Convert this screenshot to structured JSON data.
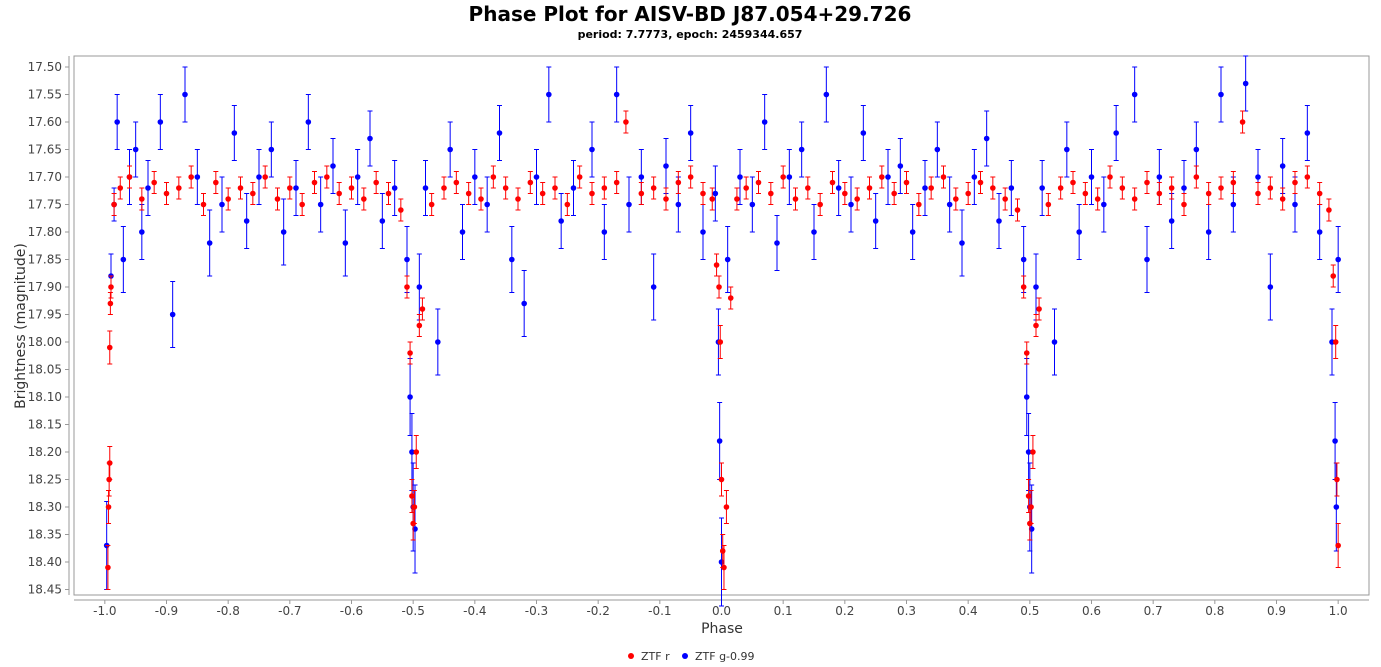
{
  "chart_data": {
    "type": "scatter",
    "title": "Phase Plot for AISV-BD J87.054+29.726",
    "subtitle": "period: 7.7773, epoch: 2459344.657",
    "xlabel": "Phase",
    "ylabel": "Brightness (magnitude)",
    "xlim": [
      -1.05,
      1.05
    ],
    "ylim": [
      18.46,
      17.48
    ],
    "y_inverted": true,
    "x_ticks": [
      "-1.0",
      "-0.9",
      "-0.8",
      "-0.7",
      "-0.6",
      "-0.5",
      "-0.4",
      "-0.3",
      "-0.2",
      "-0.1",
      "0.0",
      "0.1",
      "0.2",
      "0.3",
      "0.4",
      "0.5",
      "0.6",
      "0.7",
      "0.8",
      "0.9",
      "1.0"
    ],
    "y_ticks": [
      "17.50",
      "17.55",
      "17.60",
      "17.65",
      "17.70",
      "17.75",
      "17.80",
      "17.85",
      "17.90",
      "17.95",
      "18.00",
      "18.05",
      "18.10",
      "18.15",
      "18.20",
      "18.25",
      "18.30",
      "18.35",
      "18.40",
      "18.45"
    ],
    "grid": false,
    "legend_position": "bottom-center",
    "series": [
      {
        "name": "ZTF r",
        "color": "#ff0000",
        "x": [
          -0.995,
          -0.994,
          -0.993,
          -0.992,
          -0.992,
          -0.991,
          -0.99,
          -0.985,
          -0.975,
          -0.96,
          -0.94,
          -0.92,
          -0.9,
          -0.88,
          -0.86,
          -0.84,
          -0.82,
          -0.8,
          -0.78,
          -0.76,
          -0.74,
          -0.72,
          -0.7,
          -0.68,
          -0.66,
          -0.64,
          -0.62,
          -0.6,
          -0.58,
          -0.56,
          -0.54,
          -0.52,
          -0.51,
          -0.505,
          -0.502,
          -0.5,
          -0.498,
          -0.495,
          -0.49,
          -0.485,
          -0.47,
          -0.45,
          -0.43,
          -0.41,
          -0.39,
          -0.37,
          -0.35,
          -0.33,
          -0.31,
          -0.29,
          -0.27,
          -0.25,
          -0.23,
          -0.21,
          -0.19,
          -0.17,
          -0.155,
          -0.13,
          -0.11,
          -0.09,
          -0.07,
          -0.05,
          -0.03,
          -0.015,
          -0.008,
          -0.004,
          -0.002,
          0.0,
          0.002,
          0.004,
          0.008,
          0.015,
          0.025,
          0.04,
          0.06,
          0.08,
          0.1,
          0.12,
          0.14,
          0.16,
          0.18,
          0.2,
          0.22,
          0.24,
          0.26,
          0.28,
          0.3,
          0.32,
          0.34,
          0.36,
          0.38,
          0.4,
          0.42,
          0.44,
          0.46,
          0.48,
          0.49,
          0.495,
          0.498,
          0.5,
          0.502,
          0.505,
          0.51,
          0.515,
          0.53,
          0.55,
          0.57,
          0.59,
          0.61,
          0.63,
          0.65,
          0.67,
          0.69,
          0.71,
          0.73,
          0.75,
          0.77,
          0.79,
          0.81,
          0.83,
          0.845,
          0.87,
          0.89,
          0.91,
          0.93,
          0.95,
          0.97,
          0.985,
          0.992,
          0.996,
          0.998,
          1.0
        ],
        "y": [
          18.41,
          18.3,
          18.25,
          18.22,
          18.01,
          17.93,
          17.9,
          17.75,
          17.72,
          17.7,
          17.74,
          17.71,
          17.73,
          17.72,
          17.7,
          17.75,
          17.71,
          17.74,
          17.72,
          17.73,
          17.7,
          17.74,
          17.72,
          17.75,
          17.71,
          17.7,
          17.73,
          17.72,
          17.74,
          17.71,
          17.73,
          17.76,
          17.9,
          18.02,
          18.28,
          18.33,
          18.3,
          18.2,
          17.97,
          17.94,
          17.75,
          17.72,
          17.71,
          17.73,
          17.74,
          17.7,
          17.72,
          17.74,
          17.71,
          17.73,
          17.72,
          17.75,
          17.7,
          17.73,
          17.72,
          17.71,
          17.6,
          17.73,
          17.72,
          17.74,
          17.71,
          17.7,
          17.73,
          17.74,
          17.86,
          17.9,
          18.0,
          18.25,
          18.38,
          18.41,
          18.3,
          17.92,
          17.74,
          17.72,
          17.71,
          17.73,
          17.7,
          17.74,
          17.72,
          17.75,
          17.71,
          17.73,
          17.74,
          17.72,
          17.7,
          17.73,
          17.71,
          17.75,
          17.72,
          17.7,
          17.74,
          17.73,
          17.71,
          17.72,
          17.74,
          17.76,
          17.9,
          18.02,
          18.28,
          18.33,
          18.3,
          18.2,
          17.97,
          17.94,
          17.75,
          17.72,
          17.71,
          17.73,
          17.74,
          17.7,
          17.72,
          17.74,
          17.71,
          17.73,
          17.72,
          17.75,
          17.7,
          17.73,
          17.72,
          17.71,
          17.6,
          17.73,
          17.72,
          17.74,
          17.71,
          17.7,
          17.73,
          17.76,
          17.88,
          18.0,
          18.25,
          18.37
        ],
        "err": [
          0.04,
          0.03,
          0.03,
          0.03,
          0.03,
          0.02,
          0.02,
          0.02,
          0.02,
          0.02,
          0.02,
          0.02,
          0.02,
          0.02,
          0.02,
          0.02,
          0.02,
          0.02,
          0.02,
          0.02,
          0.02,
          0.02,
          0.02,
          0.02,
          0.02,
          0.02,
          0.02,
          0.02,
          0.02,
          0.02,
          0.02,
          0.02,
          0.02,
          0.02,
          0.03,
          0.03,
          0.03,
          0.03,
          0.02,
          0.02,
          0.02,
          0.02,
          0.02,
          0.02,
          0.02,
          0.02,
          0.02,
          0.02,
          0.02,
          0.02,
          0.02,
          0.02,
          0.02,
          0.02,
          0.02,
          0.02,
          0.02,
          0.02,
          0.02,
          0.02,
          0.02,
          0.02,
          0.02,
          0.02,
          0.02,
          0.02,
          0.03,
          0.03,
          0.03,
          0.04,
          0.03,
          0.02,
          0.02,
          0.02,
          0.02,
          0.02,
          0.02,
          0.02,
          0.02,
          0.02,
          0.02,
          0.02,
          0.02,
          0.02,
          0.02,
          0.02,
          0.02,
          0.02,
          0.02,
          0.02,
          0.02,
          0.02,
          0.02,
          0.02,
          0.02,
          0.02,
          0.02,
          0.02,
          0.03,
          0.03,
          0.03,
          0.03,
          0.02,
          0.02,
          0.02,
          0.02,
          0.02,
          0.02,
          0.02,
          0.02,
          0.02,
          0.02,
          0.02,
          0.02,
          0.02,
          0.02,
          0.02,
          0.02,
          0.02,
          0.02,
          0.02,
          0.02,
          0.02,
          0.02,
          0.02,
          0.02,
          0.02,
          0.02,
          0.02,
          0.03,
          0.03,
          0.04
        ]
      },
      {
        "name": "ZTF g-0.99",
        "color": "#0000ff",
        "x": [
          -0.997,
          -0.99,
          -0.985,
          -0.98,
          -0.97,
          -0.96,
          -0.95,
          -0.94,
          -0.93,
          -0.91,
          -0.89,
          -0.87,
          -0.85,
          -0.83,
          -0.81,
          -0.79,
          -0.77,
          -0.75,
          -0.73,
          -0.71,
          -0.69,
          -0.67,
          -0.65,
          -0.63,
          -0.61,
          -0.59,
          -0.57,
          -0.55,
          -0.53,
          -0.51,
          -0.505,
          -0.502,
          -0.5,
          -0.497,
          -0.49,
          -0.48,
          -0.46,
          -0.44,
          -0.42,
          -0.4,
          -0.38,
          -0.36,
          -0.34,
          -0.32,
          -0.3,
          -0.28,
          -0.26,
          -0.24,
          -0.21,
          -0.19,
          -0.17,
          -0.15,
          -0.13,
          -0.11,
          -0.09,
          -0.07,
          -0.05,
          -0.03,
          -0.01,
          -0.005,
          -0.003,
          0.0,
          0.01,
          0.03,
          0.05,
          0.07,
          0.09,
          0.11,
          0.13,
          0.15,
          0.17,
          0.19,
          0.21,
          0.23,
          0.25,
          0.27,
          0.29,
          0.31,
          0.33,
          0.35,
          0.37,
          0.39,
          0.41,
          0.43,
          0.45,
          0.47,
          0.49,
          0.495,
          0.498,
          0.5,
          0.503,
          0.51,
          0.52,
          0.54,
          0.56,
          0.58,
          0.6,
          0.62,
          0.64,
          0.67,
          0.69,
          0.71,
          0.73,
          0.75,
          0.77,
          0.79,
          0.81,
          0.83,
          0.85,
          0.87,
          0.89,
          0.91,
          0.93,
          0.95,
          0.97,
          0.99,
          0.995,
          0.997,
          1.0
        ],
        "y": [
          18.37,
          17.88,
          17.75,
          17.6,
          17.85,
          17.7,
          17.65,
          17.8,
          17.72,
          17.6,
          17.95,
          17.55,
          17.7,
          17.82,
          17.75,
          17.62,
          17.78,
          17.7,
          17.65,
          17.8,
          17.72,
          17.6,
          17.75,
          17.68,
          17.82,
          17.7,
          17.63,
          17.78,
          17.72,
          17.85,
          18.1,
          18.2,
          18.3,
          18.34,
          17.9,
          17.72,
          18.0,
          17.65,
          17.8,
          17.7,
          17.75,
          17.62,
          17.85,
          17.93,
          17.7,
          17.55,
          17.78,
          17.72,
          17.65,
          17.8,
          17.55,
          17.75,
          17.7,
          17.9,
          17.68,
          17.75,
          17.62,
          17.8,
          17.73,
          18.0,
          18.18,
          18.4,
          17.85,
          17.7,
          17.75,
          17.6,
          17.82,
          17.7,
          17.65,
          17.8,
          17.55,
          17.72,
          17.75,
          17.62,
          17.78,
          17.7,
          17.68,
          17.8,
          17.72,
          17.65,
          17.75,
          17.82,
          17.7,
          17.63,
          17.78,
          17.72,
          17.85,
          18.1,
          18.2,
          18.3,
          18.34,
          17.9,
          17.72,
          18.0,
          17.65,
          17.8,
          17.7,
          17.75,
          17.62,
          17.55,
          17.85,
          17.7,
          17.78,
          17.72,
          17.65,
          17.8,
          17.55,
          17.75,
          17.53,
          17.7,
          17.9,
          17.68,
          17.75,
          17.62,
          17.8,
          18.0,
          18.18,
          18.3,
          17.85
        ],
        "err": [
          0.08,
          0.04,
          0.03,
          0.05,
          0.06,
          0.05,
          0.05,
          0.05,
          0.05,
          0.05,
          0.06,
          0.05,
          0.05,
          0.06,
          0.05,
          0.05,
          0.05,
          0.05,
          0.05,
          0.06,
          0.05,
          0.05,
          0.05,
          0.05,
          0.06,
          0.05,
          0.05,
          0.05,
          0.05,
          0.06,
          0.07,
          0.07,
          0.08,
          0.08,
          0.06,
          0.05,
          0.06,
          0.05,
          0.05,
          0.05,
          0.05,
          0.05,
          0.06,
          0.06,
          0.05,
          0.05,
          0.05,
          0.05,
          0.05,
          0.05,
          0.05,
          0.05,
          0.05,
          0.06,
          0.05,
          0.05,
          0.05,
          0.05,
          0.05,
          0.06,
          0.07,
          0.08,
          0.06,
          0.05,
          0.05,
          0.05,
          0.05,
          0.05,
          0.05,
          0.05,
          0.05,
          0.05,
          0.05,
          0.05,
          0.05,
          0.05,
          0.05,
          0.05,
          0.05,
          0.05,
          0.05,
          0.06,
          0.05,
          0.05,
          0.05,
          0.05,
          0.06,
          0.07,
          0.07,
          0.08,
          0.08,
          0.06,
          0.05,
          0.06,
          0.05,
          0.05,
          0.05,
          0.05,
          0.05,
          0.05,
          0.06,
          0.05,
          0.05,
          0.05,
          0.05,
          0.05,
          0.05,
          0.05,
          0.05,
          0.05,
          0.06,
          0.05,
          0.05,
          0.05,
          0.05,
          0.06,
          0.07,
          0.08,
          0.06
        ]
      }
    ]
  }
}
